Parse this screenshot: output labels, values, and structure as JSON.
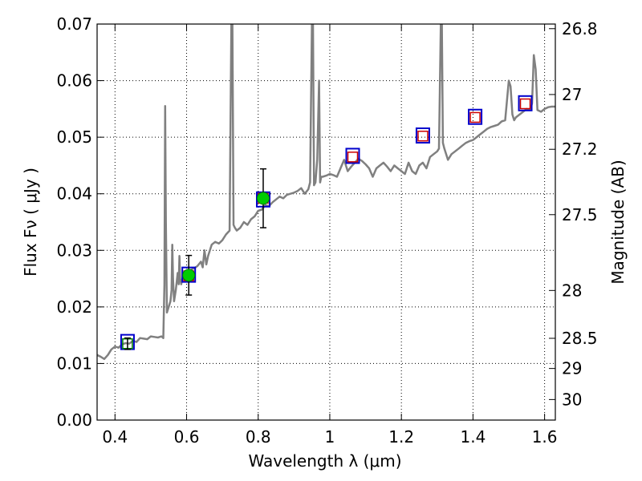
{
  "chart_data": {
    "type": "line",
    "title": "",
    "xlabel": "Wavelength  λ (μm)",
    "ylabel_left": "Flux  Fν  ( μJy )",
    "ylabel_right": "Magnitude (AB)",
    "xlim": [
      0.35,
      1.63
    ],
    "ylim": [
      0.0,
      0.07
    ],
    "grid": true,
    "x_ticks": [
      {
        "value": 0.4,
        "label": "0.4"
      },
      {
        "value": 0.6,
        "label": "0.6"
      },
      {
        "value": 0.8,
        "label": "0.8"
      },
      {
        "value": 1.0,
        "label": "1"
      },
      {
        "value": 1.2,
        "label": "1.2"
      },
      {
        "value": 1.4,
        "label": "1.4"
      },
      {
        "value": 1.6,
        "label": "1.6"
      }
    ],
    "y_ticks": [
      {
        "value": 0.0,
        "label": "0.00"
      },
      {
        "value": 0.01,
        "label": "0.01"
      },
      {
        "value": 0.02,
        "label": "0.02"
      },
      {
        "value": 0.03,
        "label": "0.03"
      },
      {
        "value": 0.04,
        "label": "0.04"
      },
      {
        "value": 0.05,
        "label": "0.05"
      },
      {
        "value": 0.06,
        "label": "0.06"
      },
      {
        "value": 0.07,
        "label": "0.07"
      }
    ],
    "mag_ticks": [
      {
        "value": 26.8,
        "label": "26.8"
      },
      {
        "value": 27.0,
        "label": "27"
      },
      {
        "value": 27.2,
        "label": "27.2"
      },
      {
        "value": 27.5,
        "label": "27.5"
      },
      {
        "value": 28.0,
        "label": "28"
      },
      {
        "value": 28.5,
        "label": "28.5"
      },
      {
        "value": 29.0,
        "label": "29"
      },
      {
        "value": 30.0,
        "label": "30"
      }
    ],
    "series": [
      {
        "name": "model spectrum",
        "style": "line",
        "color": "#808080",
        "x": [
          0.35,
          0.36,
          0.37,
          0.38,
          0.39,
          0.4,
          0.41,
          0.42,
          0.43,
          0.44,
          0.45,
          0.46,
          0.47,
          0.48,
          0.49,
          0.5,
          0.51,
          0.52,
          0.53,
          0.535,
          0.538,
          0.54,
          0.542,
          0.545,
          0.55,
          0.555,
          0.558,
          0.56,
          0.562,
          0.565,
          0.57,
          0.575,
          0.578,
          0.58,
          0.582,
          0.585,
          0.59,
          0.595,
          0.6,
          0.61,
          0.62,
          0.63,
          0.64,
          0.645,
          0.65,
          0.655,
          0.66,
          0.67,
          0.68,
          0.69,
          0.7,
          0.71,
          0.72,
          0.725,
          0.728,
          0.731,
          0.735,
          0.74,
          0.75,
          0.76,
          0.77,
          0.78,
          0.79,
          0.8,
          0.81,
          0.82,
          0.83,
          0.84,
          0.85,
          0.86,
          0.87,
          0.88,
          0.89,
          0.9,
          0.91,
          0.92,
          0.93,
          0.94,
          0.945,
          0.95,
          0.953,
          0.956,
          0.96,
          0.965,
          0.97,
          0.973,
          0.976,
          0.98,
          0.99,
          1.0,
          1.01,
          1.02,
          1.03,
          1.04,
          1.05,
          1.06,
          1.07,
          1.08,
          1.09,
          1.1,
          1.11,
          1.12,
          1.13,
          1.14,
          1.15,
          1.16,
          1.17,
          1.18,
          1.19,
          1.2,
          1.21,
          1.22,
          1.23,
          1.24,
          1.25,
          1.26,
          1.27,
          1.28,
          1.29,
          1.3,
          1.305,
          1.31,
          1.313,
          1.316,
          1.32,
          1.33,
          1.34,
          1.35,
          1.36,
          1.37,
          1.38,
          1.39,
          1.4,
          1.41,
          1.42,
          1.43,
          1.44,
          1.45,
          1.46,
          1.47,
          1.48,
          1.49,
          1.5,
          1.505,
          1.51,
          1.515,
          1.52,
          1.53,
          1.54,
          1.55,
          1.56,
          1.565,
          1.57,
          1.575,
          1.58,
          1.59,
          1.6,
          1.61,
          1.62,
          1.63
        ],
        "y": [
          0.0115,
          0.0112,
          0.0108,
          0.0115,
          0.0125,
          0.013,
          0.0128,
          0.0134,
          0.0136,
          0.0135,
          0.014,
          0.0138,
          0.0145,
          0.0144,
          0.0143,
          0.0148,
          0.0147,
          0.0146,
          0.0148,
          0.0145,
          0.024,
          0.0555,
          0.035,
          0.019,
          0.02,
          0.021,
          0.023,
          0.031,
          0.025,
          0.021,
          0.023,
          0.026,
          0.024,
          0.029,
          0.025,
          0.024,
          0.0255,
          0.0258,
          0.0262,
          0.0265,
          0.0268,
          0.0272,
          0.028,
          0.027,
          0.03,
          0.0275,
          0.029,
          0.031,
          0.0315,
          0.0312,
          0.0318,
          0.0328,
          0.0335,
          0.07,
          0.07,
          0.0345,
          0.034,
          0.0335,
          0.034,
          0.035,
          0.0345,
          0.0355,
          0.036,
          0.037,
          0.0372,
          0.038,
          0.0378,
          0.0385,
          0.039,
          0.0395,
          0.0392,
          0.0398,
          0.04,
          0.0402,
          0.0405,
          0.041,
          0.04,
          0.0408,
          0.042,
          0.07,
          0.07,
          0.0415,
          0.042,
          0.046,
          0.06,
          0.042,
          0.043,
          0.043,
          0.0432,
          0.0435,
          0.0433,
          0.043,
          0.0445,
          0.046,
          0.044,
          0.0448,
          0.0455,
          0.0462,
          0.0458,
          0.0452,
          0.0445,
          0.043,
          0.0445,
          0.045,
          0.0455,
          0.0448,
          0.044,
          0.045,
          0.0445,
          0.044,
          0.0435,
          0.0455,
          0.044,
          0.0435,
          0.045,
          0.0455,
          0.0445,
          0.0465,
          0.047,
          0.0475,
          0.048,
          0.07,
          0.07,
          0.049,
          0.048,
          0.046,
          0.047,
          0.0475,
          0.048,
          0.0485,
          0.049,
          0.0493,
          0.0495,
          0.05,
          0.0505,
          0.051,
          0.0515,
          0.0518,
          0.052,
          0.0522,
          0.0528,
          0.053,
          0.06,
          0.059,
          0.054,
          0.053,
          0.0535,
          0.054,
          0.0545,
          0.055,
          0.0548,
          0.056,
          0.0645,
          0.062,
          0.0548,
          0.0545,
          0.055,
          0.0553,
          0.0554,
          0.0554
        ]
      },
      {
        "name": "model band fluxes (red squares)",
        "style": "marker",
        "x": [
          0.435,
          0.606,
          0.814,
          1.064,
          1.26,
          1.406,
          1.546
        ],
        "y": [
          0.0135,
          0.0255,
          0.0392,
          0.0465,
          0.0502,
          0.0535,
          0.0559
        ]
      },
      {
        "name": "band squares (blue outlines)",
        "style": "marker",
        "x": [
          0.435,
          0.606,
          0.814,
          1.064,
          1.26,
          1.406,
          1.546
        ],
        "y": [
          0.0138,
          0.0257,
          0.039,
          0.0467,
          0.0503,
          0.0536,
          0.056
        ]
      },
      {
        "name": "observed photometry",
        "style": "marker-errorbar",
        "x": [
          0.435,
          0.606,
          0.814
        ],
        "y": [
          0.0135,
          0.0256,
          0.0392
        ],
        "yerr_low": [
          0.001,
          0.0035,
          0.0052
        ],
        "yerr_high": [
          0.001,
          0.0035,
          0.0052
        ]
      }
    ],
    "colors": {
      "spectrum": "#808080",
      "observed_fill": "#00cc00",
      "observed_edge": "#008000",
      "blue_square": "#0000cc",
      "red_square": "#cc0000",
      "green_square": "#008000",
      "errorbar": "#000000",
      "grid": "#000000"
    }
  }
}
